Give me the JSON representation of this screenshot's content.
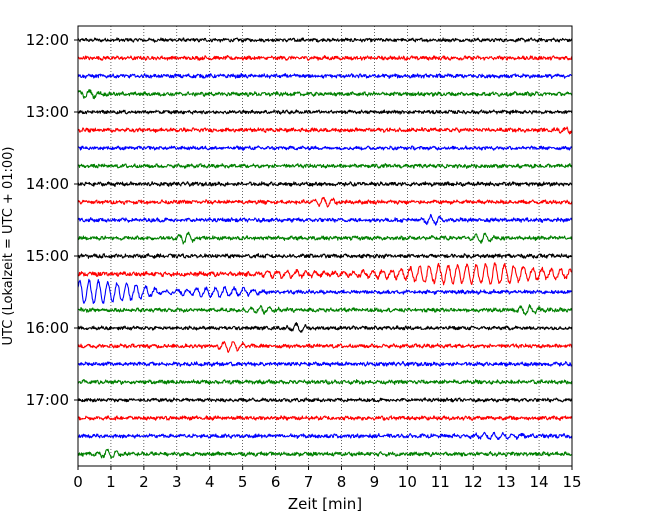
{
  "chart_data": {
    "type": "line",
    "title": "",
    "xlabel": "Zeit  [min]",
    "ylabel": "UTC (Lokalzeit = UTC + 01:00)",
    "xlim": [
      0,
      15
    ],
    "x_ticks": [
      "0",
      "1",
      "2",
      "3",
      "4",
      "5",
      "6",
      "7",
      "8",
      "9",
      "10",
      "11",
      "12",
      "13",
      "14",
      "15"
    ],
    "y_ticks": [
      "12:00",
      "13:00",
      "14:00",
      "15:00",
      "16:00",
      "17:00"
    ],
    "grid": "vertical dotted",
    "colors": {
      "black": "#000000",
      "red": "#ff0000",
      "blue": "#0000ff",
      "green": "#008000"
    },
    "traces": [
      {
        "start": "12:00",
        "color": "black",
        "amp": 0.2,
        "events": []
      },
      {
        "start": "12:15",
        "color": "red",
        "amp": 0.22,
        "events": []
      },
      {
        "start": "12:30",
        "color": "blue",
        "amp": 0.22,
        "events": []
      },
      {
        "start": "12:45",
        "color": "green",
        "amp": 0.22,
        "events": [
          [
            0.3,
            0.4,
            0.5
          ]
        ]
      },
      {
        "start": "13:00",
        "color": "black",
        "amp": 0.2,
        "events": []
      },
      {
        "start": "13:15",
        "color": "red",
        "amp": 0.22,
        "events": [
          [
            14.9,
            0.5,
            0.3
          ]
        ]
      },
      {
        "start": "13:30",
        "color": "blue",
        "amp": 0.2,
        "events": []
      },
      {
        "start": "13:45",
        "color": "green",
        "amp": 0.22,
        "events": []
      },
      {
        "start": "14:00",
        "color": "black",
        "amp": 0.22,
        "events": []
      },
      {
        "start": "14:15",
        "color": "red",
        "amp": 0.22,
        "events": [
          [
            7.5,
            0.4,
            0.6
          ]
        ]
      },
      {
        "start": "14:30",
        "color": "blue",
        "amp": 0.22,
        "events": [
          [
            10.7,
            0.4,
            0.6
          ]
        ]
      },
      {
        "start": "14:45",
        "color": "green",
        "amp": 0.22,
        "events": [
          [
            3.3,
            0.3,
            0.8
          ],
          [
            12.3,
            0.3,
            0.6
          ]
        ]
      },
      {
        "start": "15:00",
        "color": "black",
        "amp": 0.22,
        "events": []
      },
      {
        "start": "15:15",
        "color": "red",
        "amp": 0.25,
        "events": [
          [
            6.5,
            1.5,
            0.4
          ],
          [
            12.0,
            3.0,
            1.4
          ]
        ]
      },
      {
        "start": "15:30",
        "color": "blue",
        "amp": 0.22,
        "events": [
          [
            0.5,
            2.0,
            1.6
          ],
          [
            4.0,
            1.5,
            0.7
          ]
        ]
      },
      {
        "start": "15:45",
        "color": "green",
        "amp": 0.22,
        "events": [
          [
            5.5,
            0.5,
            0.5
          ],
          [
            13.6,
            0.4,
            0.6
          ]
        ]
      },
      {
        "start": "16:00",
        "color": "black",
        "amp": 0.2,
        "events": [
          [
            6.7,
            0.3,
            0.6
          ]
        ]
      },
      {
        "start": "16:15",
        "color": "red",
        "amp": 0.22,
        "events": [
          [
            4.6,
            0.4,
            0.8
          ]
        ]
      },
      {
        "start": "16:30",
        "color": "blue",
        "amp": 0.22,
        "events": []
      },
      {
        "start": "16:45",
        "color": "green",
        "amp": 0.22,
        "events": []
      },
      {
        "start": "17:00",
        "color": "black",
        "amp": 0.2,
        "events": []
      },
      {
        "start": "17:15",
        "color": "red",
        "amp": 0.22,
        "events": []
      },
      {
        "start": "17:30",
        "color": "blue",
        "amp": 0.22,
        "events": [
          [
            12.8,
            0.8,
            0.5
          ]
        ]
      },
      {
        "start": "17:45",
        "color": "green",
        "amp": 0.22,
        "events": [
          [
            1.0,
            0.4,
            0.6
          ]
        ]
      }
    ]
  }
}
